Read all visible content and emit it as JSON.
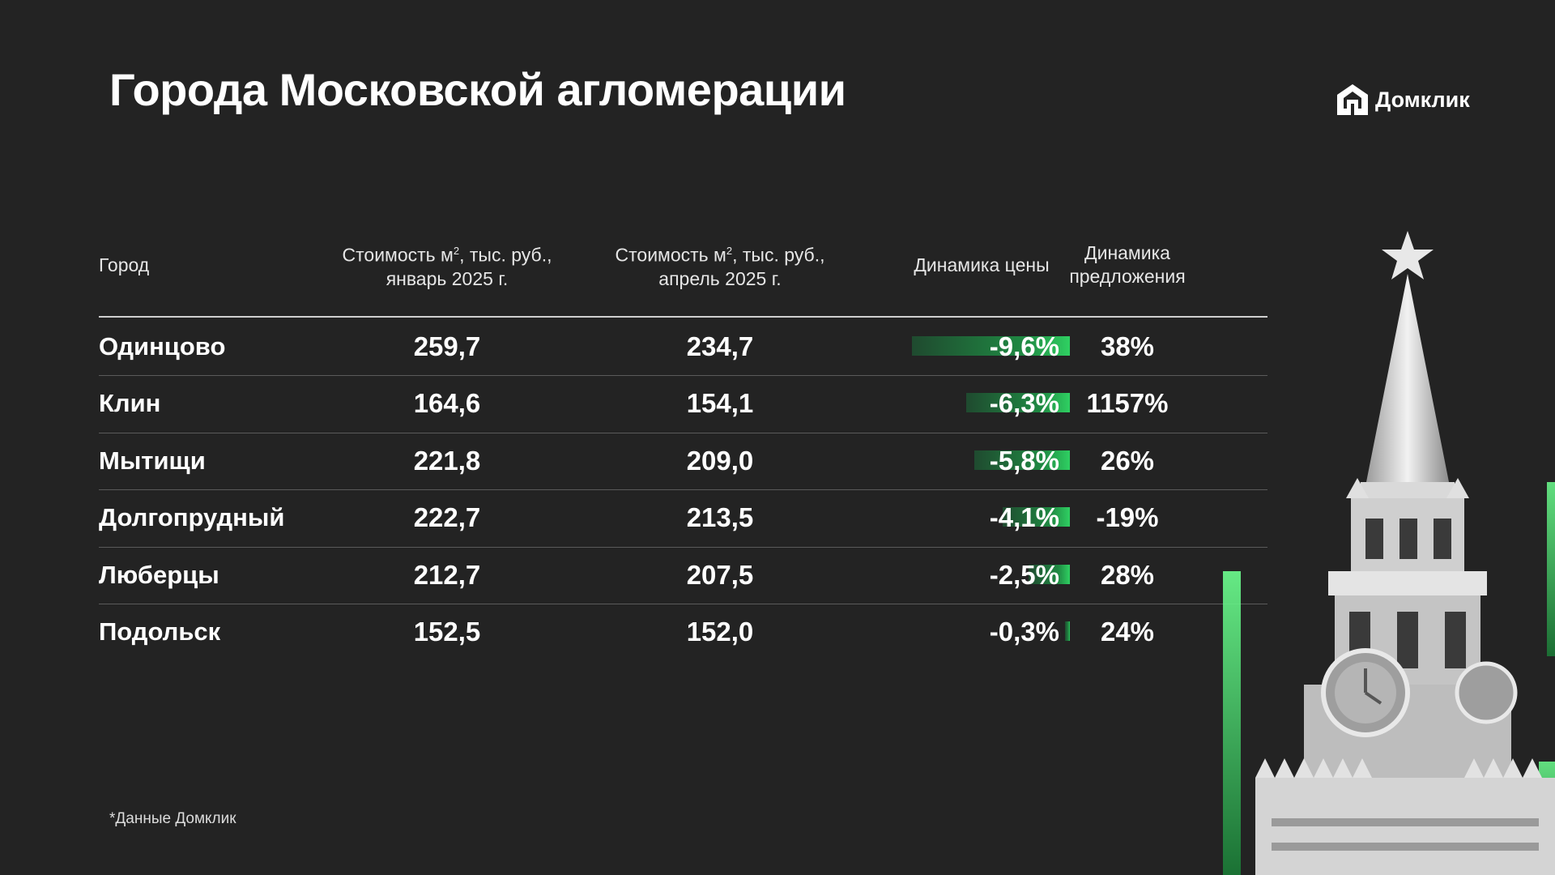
{
  "title": "Города Московской агломерации",
  "brand": {
    "name": "Домклик"
  },
  "headers": {
    "city": "Город",
    "jan_line1_pre": "Стоимость м",
    "jan_sup": "2",
    "jan_line1_post": ", тыс. руб.,",
    "jan_line2": "январь 2025 г.",
    "apr_line1_pre": "Стоимость м",
    "apr_sup": "2",
    "apr_line1_post": ", тыс. руб.,",
    "apr_line2": "апрель 2025 г.",
    "price_change": "Динамика цены",
    "supply_line1": "Динамика",
    "supply_line2": "предложения"
  },
  "chart_data": {
    "type": "table",
    "columns": [
      "Город",
      "Стоимость м², тыс. руб., январь 2025 г.",
      "Стоимость м², тыс. руб., апрель 2025 г.",
      "Динамика цены",
      "Динамика предложения"
    ],
    "rows": [
      {
        "city": "Одинцово",
        "jan": "259,7",
        "apr": "234,7",
        "price_change": "-9,6%",
        "price_change_value": -9.6,
        "supply_change": "38%"
      },
      {
        "city": "Клин",
        "jan": "164,6",
        "apr": "154,1",
        "price_change": "-6,3%",
        "price_change_value": -6.3,
        "supply_change": "1157%"
      },
      {
        "city": "Мытищи",
        "jan": "221,8",
        "apr": "209,0",
        "price_change": "-5,8%",
        "price_change_value": -5.8,
        "supply_change": "26%"
      },
      {
        "city": "Долгопрудный",
        "jan": "222,7",
        "apr": "213,5",
        "price_change": "-4,1%",
        "price_change_value": -4.1,
        "supply_change": "-19%"
      },
      {
        "city": "Люберцы",
        "jan": "212,7",
        "apr": "207,5",
        "price_change": "-2,5%",
        "price_change_value": -2.5,
        "supply_change": "28%"
      },
      {
        "city": "Подольск",
        "jan": "152,5",
        "apr": "152,0",
        "price_change": "-0,3%",
        "price_change_value": -0.3,
        "supply_change": "24%"
      }
    ]
  },
  "footnote": "*Данные Домклик",
  "colors": {
    "background": "#232323",
    "text": "#ffffff",
    "accent_green": "#2fd062",
    "bar_dark": "#1f4a2f"
  },
  "icons": {
    "logo": "house-logo-icon",
    "illustration": "kremlin-tower-icon"
  }
}
